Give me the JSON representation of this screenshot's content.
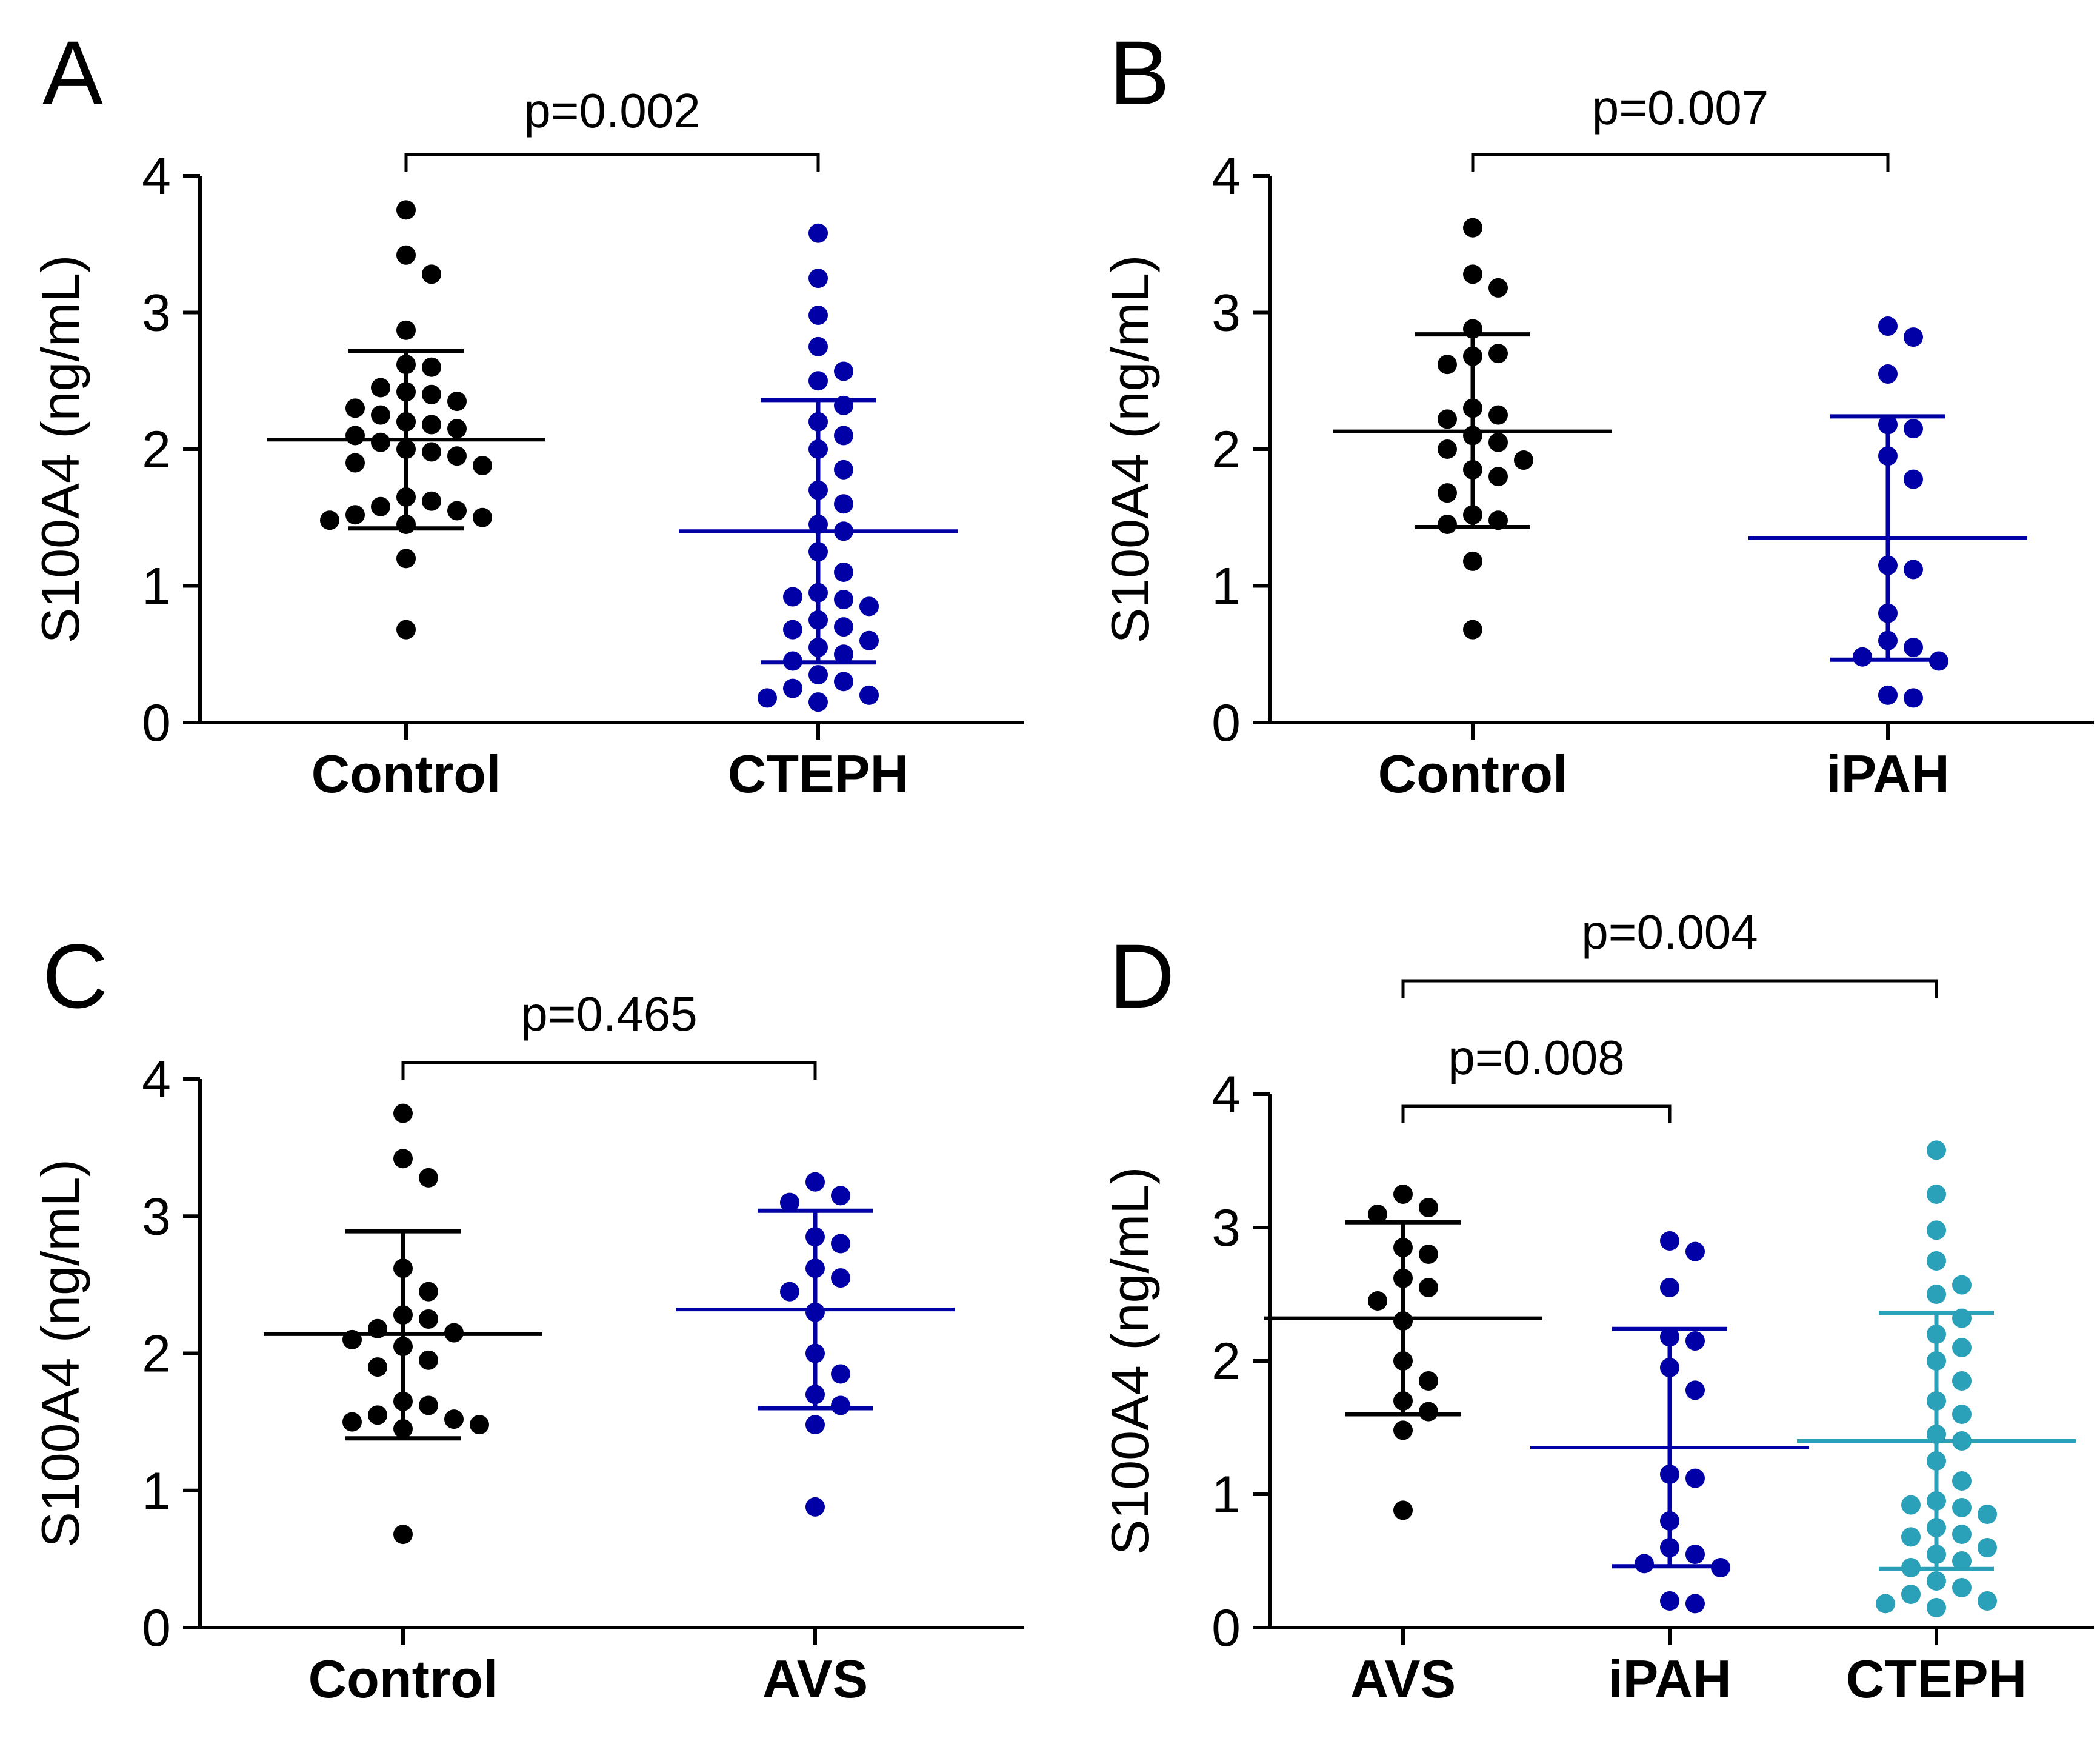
{
  "chart_data": [
    {
      "panel": "A",
      "type": "scatter",
      "ylabel": "S100A4 (ng/mL)",
      "ylim": [
        0,
        4
      ],
      "yticks": [
        "0",
        "1",
        "2",
        "3",
        "4"
      ],
      "categories": [
        "Control",
        "CTEPH"
      ],
      "groups": [
        {
          "name": "Control",
          "color": "#000000",
          "mean": 2.07,
          "sd_low": 1.42,
          "sd_high": 2.72,
          "points": [
            3.75,
            3.42,
            3.28,
            2.87,
            2.62,
            2.6,
            2.45,
            2.42,
            2.4,
            2.35,
            2.3,
            2.25,
            2.2,
            2.18,
            2.15,
            2.1,
            2.05,
            2.0,
            1.98,
            1.95,
            1.9,
            1.88,
            1.65,
            1.62,
            1.58,
            1.55,
            1.52,
            1.5,
            1.48,
            1.45,
            1.2,
            0.68
          ]
        },
        {
          "name": "CTEPH",
          "color": "#0000a6",
          "mean": 1.4,
          "sd_low": 0.44,
          "sd_high": 2.36,
          "points": [
            3.58,
            3.25,
            2.98,
            2.75,
            2.57,
            2.5,
            2.32,
            2.2,
            2.1,
            2.0,
            1.85,
            1.7,
            1.6,
            1.45,
            1.4,
            1.25,
            1.1,
            0.95,
            0.92,
            0.9,
            0.85,
            0.75,
            0.7,
            0.68,
            0.6,
            0.55,
            0.5,
            0.45,
            0.35,
            0.3,
            0.25,
            0.2,
            0.18,
            0.15
          ]
        }
      ],
      "comparisons": [
        {
          "from": "Control",
          "to": "CTEPH",
          "label": "p=0.002"
        }
      ]
    },
    {
      "panel": "B",
      "type": "scatter",
      "ylabel": "S100A4 (ng/mL)",
      "ylim": [
        0,
        4
      ],
      "yticks": [
        "0",
        "1",
        "2",
        "3",
        "4"
      ],
      "categories": [
        "Control",
        "iPAH"
      ],
      "groups": [
        {
          "name": "Control",
          "color": "#000000",
          "mean": 2.13,
          "sd_low": 1.43,
          "sd_high": 2.84,
          "points": [
            3.62,
            3.28,
            3.18,
            2.88,
            2.7,
            2.68,
            2.62,
            2.3,
            2.25,
            2.22,
            2.1,
            2.05,
            2.0,
            1.92,
            1.85,
            1.8,
            1.68,
            1.52,
            1.48,
            1.45,
            1.18,
            0.68
          ]
        },
        {
          "name": "iPAH",
          "color": "#0000a6",
          "mean": 1.35,
          "sd_low": 0.46,
          "sd_high": 2.24,
          "points": [
            2.9,
            2.82,
            2.55,
            2.18,
            2.15,
            1.95,
            1.78,
            1.15,
            1.12,
            0.8,
            0.6,
            0.55,
            0.48,
            0.45,
            0.2,
            0.18
          ]
        }
      ],
      "comparisons": [
        {
          "from": "Control",
          "to": "iPAH",
          "label": "p=0.007"
        }
      ]
    },
    {
      "panel": "C",
      "type": "scatter",
      "ylabel": "S100A4 (ng/mL)",
      "ylim": [
        0,
        4
      ],
      "yticks": [
        "0",
        "1",
        "2",
        "3",
        "4"
      ],
      "categories": [
        "Control",
        "AVS"
      ],
      "groups": [
        {
          "name": "Control",
          "color": "#000000",
          "mean": 2.14,
          "sd_low": 1.38,
          "sd_high": 2.89,
          "points": [
            3.75,
            3.42,
            3.28,
            2.62,
            2.45,
            2.28,
            2.25,
            2.18,
            2.15,
            2.1,
            2.05,
            1.95,
            1.9,
            1.65,
            1.62,
            1.55,
            1.52,
            1.5,
            1.48,
            1.45,
            0.68
          ]
        },
        {
          "name": "AVS",
          "color": "#0000a6",
          "mean": 2.32,
          "sd_low": 1.6,
          "sd_high": 3.04,
          "points": [
            3.25,
            3.15,
            3.1,
            2.85,
            2.8,
            2.62,
            2.55,
            2.45,
            2.3,
            2.0,
            1.85,
            1.7,
            1.62,
            1.48,
            0.88
          ]
        }
      ],
      "comparisons": [
        {
          "from": "Control",
          "to": "AVS",
          "label": "p=0.465"
        }
      ]
    },
    {
      "panel": "D",
      "type": "scatter",
      "ylabel": "S100A4 (ng/mL)",
      "ylim": [
        0,
        4
      ],
      "yticks": [
        "0",
        "1",
        "2",
        "3",
        "4"
      ],
      "categories": [
        "AVS",
        "iPAH",
        "CTEPH"
      ],
      "groups": [
        {
          "name": "AVS",
          "color": "#000000",
          "mean": 2.32,
          "sd_low": 1.6,
          "sd_high": 3.04,
          "points": [
            3.25,
            3.15,
            3.1,
            2.85,
            2.8,
            2.62,
            2.55,
            2.45,
            2.3,
            2.0,
            1.85,
            1.7,
            1.62,
            1.48,
            0.88
          ]
        },
        {
          "name": "iPAH",
          "color": "#0000a6",
          "mean": 1.35,
          "sd_low": 0.46,
          "sd_high": 2.24,
          "points": [
            2.9,
            2.82,
            2.55,
            2.18,
            2.15,
            1.95,
            1.78,
            1.15,
            1.12,
            0.8,
            0.6,
            0.55,
            0.48,
            0.45,
            0.2,
            0.18
          ]
        },
        {
          "name": "CTEPH",
          "color": "#2aa1b8",
          "mean": 1.4,
          "sd_low": 0.44,
          "sd_high": 2.36,
          "points": [
            3.58,
            3.25,
            2.98,
            2.75,
            2.57,
            2.5,
            2.32,
            2.2,
            2.1,
            2.0,
            1.85,
            1.7,
            1.6,
            1.45,
            1.4,
            1.25,
            1.1,
            0.95,
            0.92,
            0.9,
            0.85,
            0.75,
            0.7,
            0.68,
            0.6,
            0.55,
            0.5,
            0.45,
            0.35,
            0.3,
            0.25,
            0.2,
            0.18,
            0.15
          ]
        }
      ],
      "comparisons": [
        {
          "from": "AVS",
          "to": "iPAH",
          "label": "p=0.008"
        },
        {
          "from": "AVS",
          "to": "CTEPH",
          "label": "p=0.004"
        }
      ]
    }
  ]
}
